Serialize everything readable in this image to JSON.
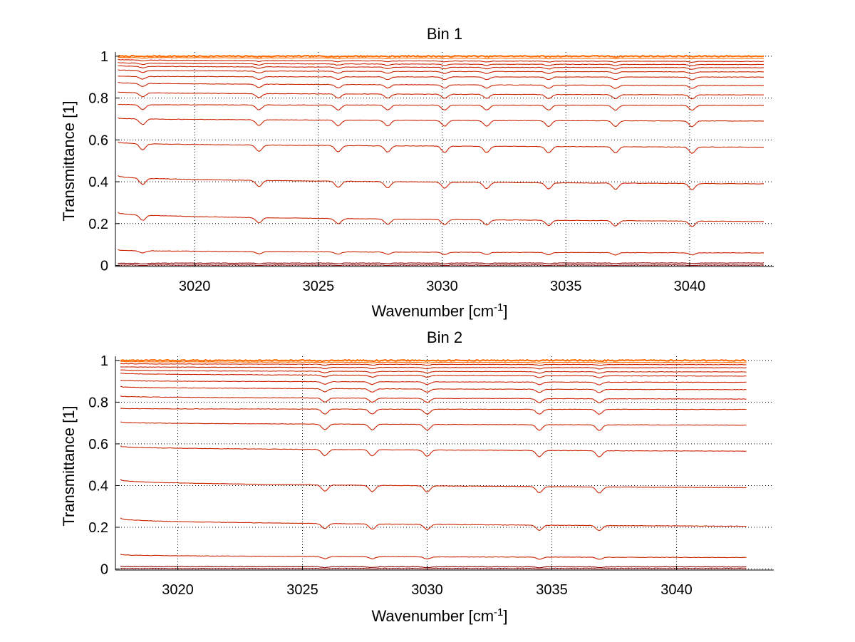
{
  "chart_data": [
    {
      "type": "line",
      "title": "Bin 1",
      "xlabel": "Wavenumber [cm",
      "xlabel_sup": "-1",
      "xlabel_end": "]",
      "ylabel": "Transmittance [1]",
      "xlim": [
        3016.8,
        3043.4
      ],
      "ylim": [
        -0.005,
        1.02
      ],
      "xticks": [
        3020,
        3025,
        3030,
        3035,
        3040
      ],
      "xtick_labels": [
        "3020",
        "3025",
        "3030",
        "3035",
        "3040"
      ],
      "yticks": [
        0,
        0.2,
        0.4,
        0.6,
        0.8,
        1
      ],
      "ytick_labels": [
        "0",
        "0.2",
        "0.4",
        "0.6",
        "0.8",
        "1"
      ],
      "grid": true,
      "x_range": [
        3016.9,
        3043.0
      ],
      "absorption_lines": [
        3017.9,
        3022.6,
        3025.8,
        3027.8,
        3030.1,
        3031.8,
        3034.3,
        3037.0,
        3040.1
      ],
      "series": [
        {
          "start": 1.0,
          "end": 1.0
        },
        {
          "start": 0.995,
          "end": 0.99
        },
        {
          "start": 0.985,
          "end": 0.975
        },
        {
          "start": 0.97,
          "end": 0.96
        },
        {
          "start": 0.955,
          "end": 0.945
        },
        {
          "start": 0.935,
          "end": 0.925
        },
        {
          "start": 0.905,
          "end": 0.9
        },
        {
          "start": 0.875,
          "end": 0.86
        },
        {
          "start": 0.83,
          "end": 0.815
        },
        {
          "start": 0.77,
          "end": 0.765
        },
        {
          "start": 0.705,
          "end": 0.69
        },
        {
          "start": 0.59,
          "end": 0.565
        },
        {
          "start": 0.43,
          "end": 0.39
        },
        {
          "start": 0.255,
          "end": 0.21
        },
        {
          "start": 0.075,
          "end": 0.06
        },
        {
          "start": 0.01,
          "end": 0.012
        },
        {
          "start": 0.002,
          "end": 0.002
        }
      ]
    },
    {
      "type": "line",
      "title": "Bin 2",
      "xlabel": "Wavenumber [cm",
      "xlabel_sup": "-1",
      "xlabel_end": "]",
      "ylabel": "Transmittance [1]",
      "xlim": [
        3017.5,
        3043.9
      ],
      "ylim": [
        -0.005,
        1.02
      ],
      "xticks": [
        3020,
        3025,
        3030,
        3035,
        3040
      ],
      "xtick_labels": [
        "3020",
        "3025",
        "3030",
        "3035",
        "3040"
      ],
      "yticks": [
        0,
        0.2,
        0.4,
        0.6,
        0.8,
        1
      ],
      "ytick_labels": [
        "0",
        "0.2",
        "0.4",
        "0.6",
        "0.8",
        "1"
      ],
      "grid": true,
      "x_range": [
        3017.7,
        3042.8
      ],
      "absorption_lines": [
        3025.9,
        3027.8,
        3030.0,
        3034.5,
        3036.9
      ],
      "series": [
        {
          "start": 1.0,
          "end": 1.0
        },
        {
          "start": 0.995,
          "end": 0.99
        },
        {
          "start": 0.985,
          "end": 0.98
        },
        {
          "start": 0.97,
          "end": 0.965
        },
        {
          "start": 0.955,
          "end": 0.945
        },
        {
          "start": 0.94,
          "end": 0.925
        },
        {
          "start": 0.905,
          "end": 0.895
        },
        {
          "start": 0.875,
          "end": 0.86
        },
        {
          "start": 0.83,
          "end": 0.815
        },
        {
          "start": 0.77,
          "end": 0.765
        },
        {
          "start": 0.705,
          "end": 0.69
        },
        {
          "start": 0.59,
          "end": 0.565
        },
        {
          "start": 0.43,
          "end": 0.39
        },
        {
          "start": 0.245,
          "end": 0.205
        },
        {
          "start": 0.07,
          "end": 0.055
        },
        {
          "start": 0.012,
          "end": 0.01
        },
        {
          "start": 0.002,
          "end": 0.002
        }
      ]
    }
  ],
  "colors": {
    "top_trace": "#ff6a00",
    "trace": "#cc2200",
    "dark_trace": "#8b0000",
    "grid": "#000000",
    "axis": "#000000"
  }
}
